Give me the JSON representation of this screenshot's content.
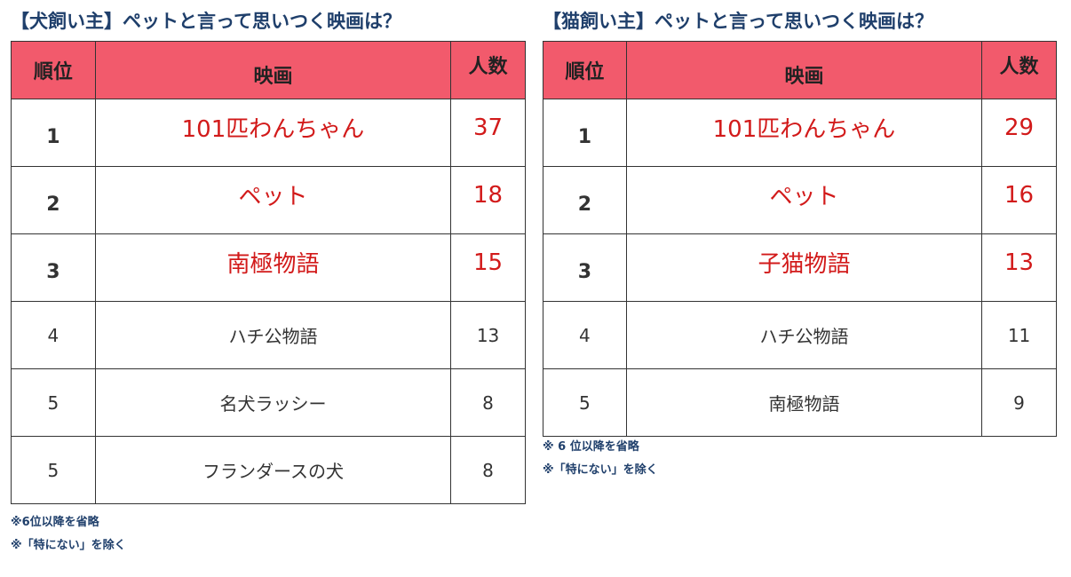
{
  "dog": {
    "title": "【犬飼い主】ペットと言って思いつく映画は？",
    "headers": {
      "rank": "順位",
      "movie": "映画",
      "count": "人数"
    },
    "rows": [
      {
        "rank": "1",
        "movie": "101匹わんちゃん",
        "count": "37"
      },
      {
        "rank": "2",
        "movie": "ペット",
        "count": "18"
      },
      {
        "rank": "3",
        "movie": "南極物語",
        "count": "15"
      },
      {
        "rank": "4",
        "movie": "ハチ公物語",
        "count": "13"
      },
      {
        "rank": "5",
        "movie": "名犬ラッシー",
        "count": "8"
      },
      {
        "rank": "5",
        "movie": "フランダースの犬",
        "count": "8"
      }
    ],
    "notes": [
      "※6位以降を省略",
      "※「特にない」を除く"
    ]
  },
  "cat": {
    "title": "【猫飼い主】ペットと言って思いつく映画は？",
    "headers": {
      "rank": "順位",
      "movie": "映画",
      "count": "人数"
    },
    "rows": [
      {
        "rank": "1",
        "movie": "101匹わんちゃん",
        "count": "29"
      },
      {
        "rank": "2",
        "movie": "ペット",
        "count": "16"
      },
      {
        "rank": "3",
        "movie": "子猫物語",
        "count": "13"
      },
      {
        "rank": "4",
        "movie": "ハチ公物語",
        "count": "11"
      },
      {
        "rank": "5",
        "movie": "南極物語",
        "count": "9"
      }
    ],
    "notes": [
      "※ 6 位以降を省略",
      "※「特にない」を除く"
    ]
  },
  "colors": {
    "header_bg": "#f25a6c",
    "highlight_text": "#d21a1a",
    "title_text": "#1f3f6b"
  }
}
